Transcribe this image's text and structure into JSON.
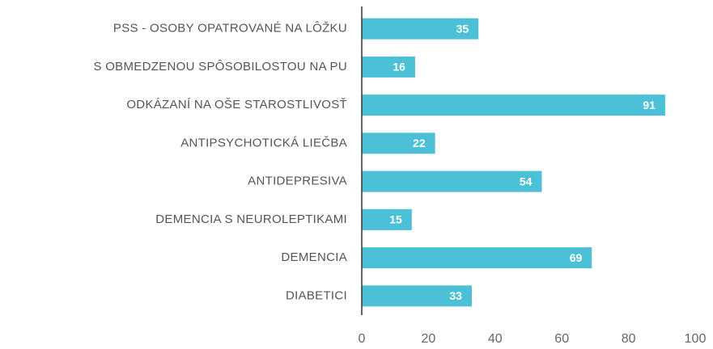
{
  "chart_data": {
    "type": "barh",
    "categories": [
      "PSS - OSOBY OPATROVANÉ NA LÔŽKU",
      "S OBMEDZENOU SPÔSOBILOSTOU NA PU",
      "ODKÁZANÍ NA OŠE STAROSTLIVOSŤ",
      "ANTIPSYCHOTICKÁ LIEČBA",
      "ANTIDEPRESIVA",
      "DEMENCIA S NEUROLEPTIKAMI",
      "DEMENCIA",
      "DIABETICI"
    ],
    "values": [
      35,
      16,
      91,
      22,
      54,
      15,
      69,
      33
    ],
    "color": "#4cc0d6",
    "xlim": [
      0,
      100
    ],
    "xticks": [
      0,
      20,
      40,
      60,
      80,
      100
    ]
  }
}
